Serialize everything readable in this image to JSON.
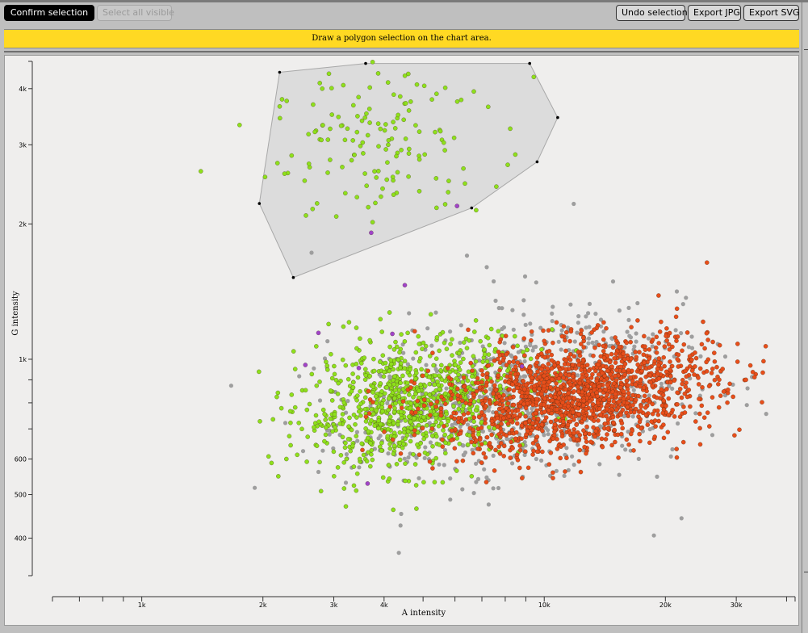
{
  "toolbar": {
    "confirm_label": "Confirm selection",
    "select_all_label": "Select all visible",
    "undo_label": "Undo selection",
    "export_jpg_label": "Export JPG",
    "export_svg_label": "Export SVG"
  },
  "banner": {
    "text": "Draw a polygon selection on the chart area."
  },
  "colors": {
    "selected": "#8ee01c",
    "population_orange": "#e84e1a",
    "unassigned": "#9e9e9e",
    "outlier_purple": "#a044c8",
    "polygon_fill": "#dcdcdc",
    "banner": "#ffd923"
  },
  "chart_data": {
    "type": "scatter",
    "xlabel": "A intensity",
    "ylabel": "G intensity",
    "x_scale": "log",
    "y_scale": "log",
    "xlim": [
      600,
      42000
    ],
    "ylim": [
      330,
      4600
    ],
    "x_ticks": [
      {
        "value": 1000,
        "label": "1k"
      },
      {
        "value": 2000,
        "label": "2k"
      },
      {
        "value": 3000,
        "label": "3k"
      },
      {
        "value": 4000,
        "label": "4k"
      },
      {
        "value": 10000,
        "label": "10k"
      },
      {
        "value": 20000,
        "label": "20k"
      },
      {
        "value": 30000,
        "label": "30k"
      }
    ],
    "x_minor_ticks": [
      700,
      800,
      900,
      5000,
      6000,
      7000,
      8000,
      9000,
      40000
    ],
    "y_ticks": [
      {
        "value": 400,
        "label": "400"
      },
      {
        "value": 500,
        "label": "500"
      },
      {
        "value": 600,
        "label": "600"
      },
      {
        "value": 1000,
        "label": "1k"
      },
      {
        "value": 2000,
        "label": "2k"
      },
      {
        "value": 3000,
        "label": "3k"
      },
      {
        "value": 4000,
        "label": "4k"
      }
    ],
    "y_minor_ticks": [
      700,
      800,
      900
    ],
    "selection_polygon": [
      [
        2200,
        4350
      ],
      [
        3600,
        4550
      ],
      [
        9200,
        4550
      ],
      [
        10800,
        3450
      ],
      [
        9600,
        2750
      ],
      [
        6600,
        2170
      ],
      [
        2380,
        1520
      ],
      [
        1960,
        2220
      ]
    ],
    "series": [
      {
        "color": "#8ee01c",
        "clusters": [
          {
            "count": 150,
            "x_center": 4000,
            "y_center": 3050,
            "x_spread": 0.14,
            "y_spread": 0.085
          },
          {
            "count": 900,
            "x_center": 4700,
            "y_center": 800,
            "x_spread": 0.14,
            "y_spread": 0.07
          }
        ]
      },
      {
        "color": "#e84e1a",
        "clusters": [
          {
            "count": 1600,
            "x_center": 12000,
            "y_center": 830,
            "x_spread": 0.17,
            "y_spread": 0.06
          }
        ]
      },
      {
        "color": "#9e9e9e",
        "clusters": [
          {
            "count": 750,
            "x_center": 8800,
            "y_center": 820,
            "x_spread": 0.2,
            "y_spread": 0.08
          },
          {
            "count": 110,
            "x_center": 9000,
            "y_center": 850,
            "x_spread": 0.28,
            "y_spread": 0.19
          }
        ]
      },
      {
        "color": "#a044c8",
        "clusters": [
          {
            "count": 10,
            "x_center": 4200,
            "y_center": 1000,
            "x_spread": 0.15,
            "y_spread": 0.25
          }
        ]
      }
    ]
  }
}
